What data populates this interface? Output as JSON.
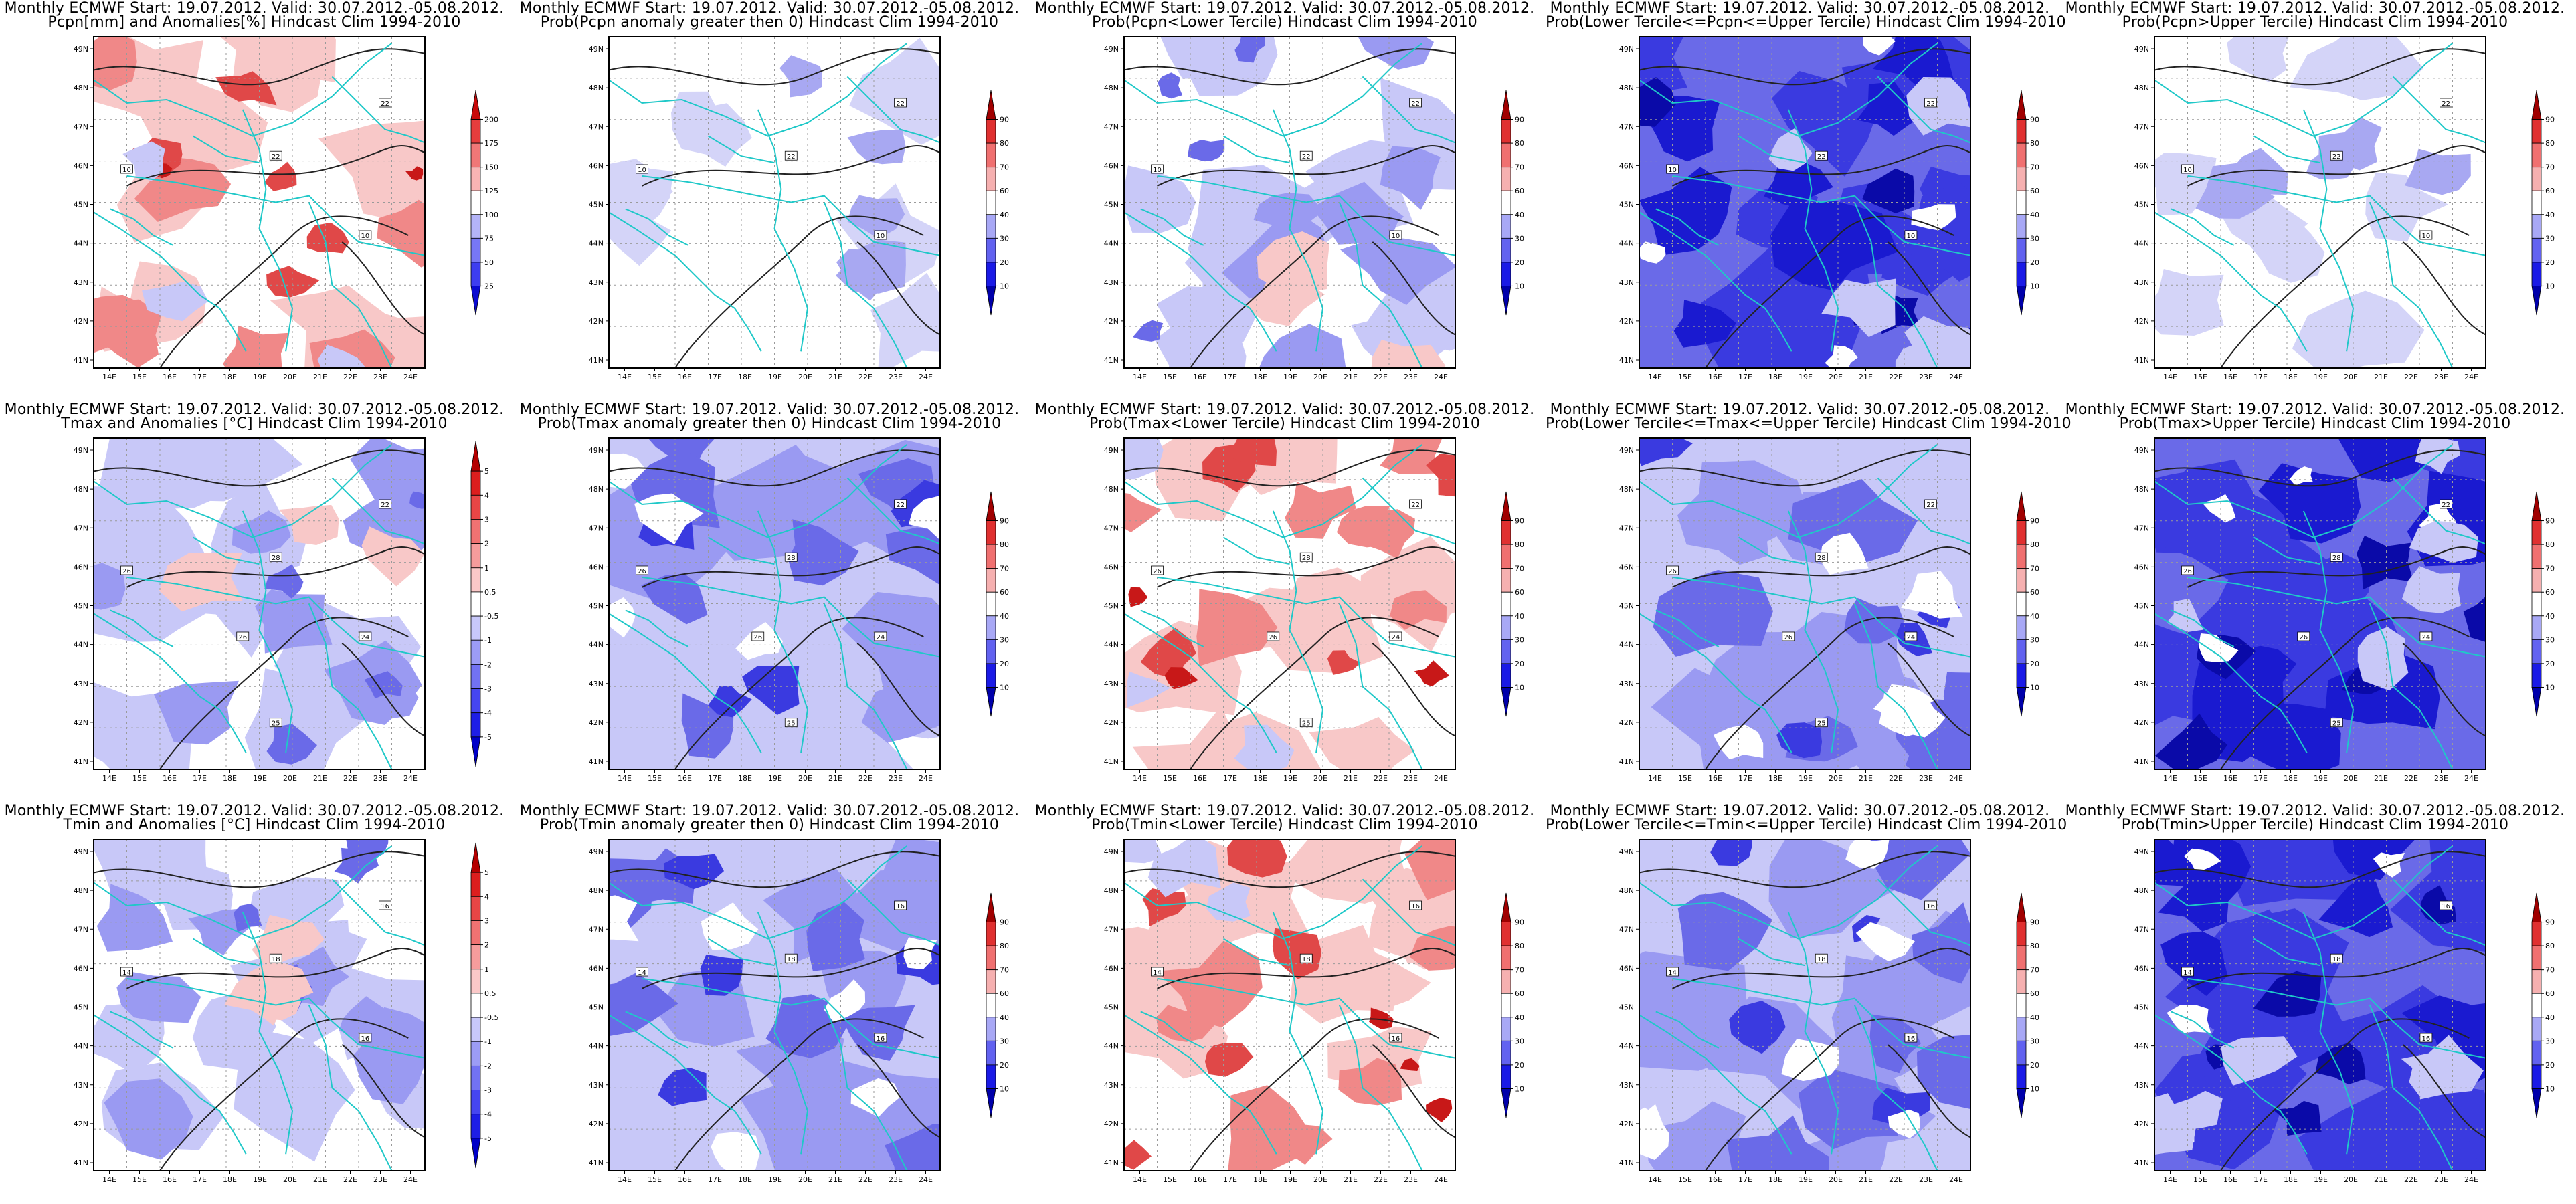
{
  "lon_ticks": [
    "14E",
    "15E",
    "16E",
    "17E",
    "18E",
    "19E",
    "20E",
    "21E",
    "22E",
    "23E",
    "24E"
  ],
  "lat_ticks": [
    "49N",
    "48N",
    "47N",
    "46N",
    "45N",
    "44N",
    "43N",
    "42N",
    "41N"
  ],
  "colorbars": {
    "precip_anom": {
      "labels": [
        "25",
        "50",
        "75",
        "100",
        "125",
        "150",
        "175",
        "200"
      ],
      "colors": [
        "#0a0ad0",
        "#3d3df0",
        "#7777f5",
        "#b4b4f8",
        "#ffffff",
        "#f8b4b4",
        "#f07777",
        "#e53d3d",
        "#c80a0a"
      ]
    },
    "temp_anom": {
      "labels": [
        "-5",
        "-4",
        "-3",
        "-2",
        "-1",
        "-0.5",
        "0.5",
        "1",
        "2",
        "3",
        "4",
        "5"
      ],
      "colors": [
        "#0000c8",
        "#1e1ee6",
        "#4646f0",
        "#7272f3",
        "#9c9cf6",
        "#c8c8fa",
        "#ffffff",
        "#fac8c8",
        "#f69c9c",
        "#f07272",
        "#e84646",
        "#dc1e1e",
        "#b40000"
      ]
    },
    "prob": {
      "labels": [
        "10",
        "20",
        "30",
        "40",
        "60",
        "70",
        "80",
        "90"
      ],
      "colors": [
        "#0000aa",
        "#1a1ae6",
        "#6262f0",
        "#a8a8f6",
        "#ffffff",
        "#f6b0b0",
        "#f07070",
        "#e03030",
        "#a00000"
      ]
    }
  },
  "chart_data": [
    {
      "type": "heatmap",
      "title_line1": "Monthly ECMWF Start: 19.07.2012. Valid: 30.07.2012.-05.08.2012.",
      "title_line2": "Pcpn[mm] and Anomalies[%] Hindcast Clim 1994-2010",
      "colorbar": "precip_anom",
      "contour_labels": [
        "22",
        "22",
        "10",
        "10"
      ],
      "dominant": "red"
    },
    {
      "type": "heatmap",
      "title_line1": "Monthly ECMWF Start: 19.07.2012. Valid: 30.07.2012.-05.08.2012.",
      "title_line2": "Prob(Pcpn anomaly greater then 0) Hindcast Clim 1994-2010",
      "colorbar": "prob",
      "contour_labels": [
        "22",
        "22",
        "10",
        "10"
      ],
      "dominant": "white"
    },
    {
      "type": "heatmap",
      "title_line1": "Monthly ECMWF Start: 19.07.2012. Valid: 30.07.2012.-05.08.2012.",
      "title_line2": "Prob(Pcpn<Lower Tercile) Hindcast Clim 1994-2010",
      "colorbar": "prob",
      "contour_labels": [
        "22",
        "22",
        "10",
        "10"
      ],
      "dominant": "blue-light"
    },
    {
      "type": "heatmap",
      "title_line1": "Monthly ECMWF Start: 19.07.2012. Valid: 30.07.2012.-05.08.2012.",
      "title_line2": "Prob(Lower Tercile<=Pcpn<=Upper Tercile) Hindcast Clim 1994-2010",
      "colorbar": "prob",
      "contour_labels": [
        "22",
        "22",
        "10",
        "10"
      ],
      "dominant": "blue-dark"
    },
    {
      "type": "heatmap",
      "title_line1": "Monthly ECMWF Start: 19.07.2012. Valid: 30.07.2012.-05.08.2012.",
      "title_line2": "Prob(Pcpn>Upper Tercile) Hindcast Clim 1994-2010",
      "colorbar": "prob",
      "contour_labels": [
        "22",
        "22",
        "10",
        "10"
      ],
      "dominant": "white"
    },
    {
      "type": "heatmap",
      "title_line1": "Monthly ECMWF Start: 19.07.2012. Valid: 30.07.2012.-05.08.2012.",
      "title_line2": "Tmax and Anomalies [°C] Hindcast Clim 1994-2010",
      "colorbar": "temp_anom",
      "contour_labels": [
        "22",
        "28",
        "26",
        "24",
        "26",
        "25"
      ],
      "dominant": "blue-light"
    },
    {
      "type": "heatmap",
      "title_line1": "Monthly ECMWF Start: 19.07.2012. Valid: 30.07.2012.-05.08.2012.",
      "title_line2": "Prob(Tmax anomaly greater then 0) Hindcast Clim 1994-2010",
      "colorbar": "prob",
      "contour_labels": [
        "22",
        "28",
        "26",
        "24",
        "26",
        "25"
      ],
      "dominant": "blue-mid"
    },
    {
      "type": "heatmap",
      "title_line1": "Monthly ECMWF Start: 19.07.2012. Valid: 30.07.2012.-05.08.2012.",
      "title_line2": "Prob(Tmax<Lower Tercile) Hindcast Clim 1994-2010",
      "colorbar": "prob",
      "contour_labels": [
        "22",
        "28",
        "26",
        "24",
        "26",
        "25"
      ],
      "dominant": "red"
    },
    {
      "type": "heatmap",
      "title_line1": "Monthly ECMWF Start: 19.07.2012. Valid: 30.07.2012.-05.08.2012.",
      "title_line2": "Prob(Lower Tercile<=Tmax<=Upper Tercile) Hindcast Clim 1994-2010",
      "colorbar": "prob",
      "contour_labels": [
        "22",
        "28",
        "26",
        "24",
        "26",
        "25"
      ],
      "dominant": "blue-mid"
    },
    {
      "type": "heatmap",
      "title_line1": "Monthly ECMWF Start: 19.07.2012. Valid: 30.07.2012.-05.08.2012.",
      "title_line2": "Prob(Tmax>Upper Tercile) Hindcast Clim 1994-2010",
      "colorbar": "prob",
      "contour_labels": [
        "22",
        "28",
        "26",
        "24",
        "26",
        "25"
      ],
      "dominant": "blue-dark"
    },
    {
      "type": "heatmap",
      "title_line1": "Monthly ECMWF Start: 19.07.2012. Valid: 30.07.2012.-05.08.2012.",
      "title_line2": "Tmin and Anomalies [°C] Hindcast Clim 1994-2010",
      "colorbar": "temp_anom",
      "contour_labels": [
        "16",
        "18",
        "14",
        "16"
      ],
      "dominant": "blue-light"
    },
    {
      "type": "heatmap",
      "title_line1": "Monthly ECMWF Start: 19.07.2012. Valid: 30.07.2012.-05.08.2012.",
      "title_line2": "Prob(Tmin anomaly greater then 0) Hindcast Clim 1994-2010",
      "colorbar": "prob",
      "contour_labels": [
        "16",
        "18",
        "14",
        "16"
      ],
      "dominant": "blue-mid"
    },
    {
      "type": "heatmap",
      "title_line1": "Monthly ECMWF Start: 19.07.2012. Valid: 30.07.2012.-05.08.2012.",
      "title_line2": "Prob(Tmin<Lower Tercile) Hindcast Clim 1994-2010",
      "colorbar": "prob",
      "contour_labels": [
        "16",
        "18",
        "14",
        "16"
      ],
      "dominant": "red"
    },
    {
      "type": "heatmap",
      "title_line1": "Monthly ECMWF Start: 19.07.2012. Valid: 30.07.2012.-05.08.2012.",
      "title_line2": "Prob(Lower Tercile<=Tmin<=Upper Tercile) Hindcast Clim 1994-2010",
      "colorbar": "prob",
      "contour_labels": [
        "16",
        "18",
        "14",
        "16"
      ],
      "dominant": "blue-mid"
    },
    {
      "type": "heatmap",
      "title_line1": "Monthly ECMWF Start: 19.07.2012. Valid: 30.07.2012.-05.08.2012.",
      "title_line2": "Prob(Tmin>Upper Tercile) Hindcast Clim 1994-2010",
      "colorbar": "prob",
      "contour_labels": [
        "16",
        "18",
        "14",
        "16"
      ],
      "dominant": "blue-dark"
    }
  ]
}
